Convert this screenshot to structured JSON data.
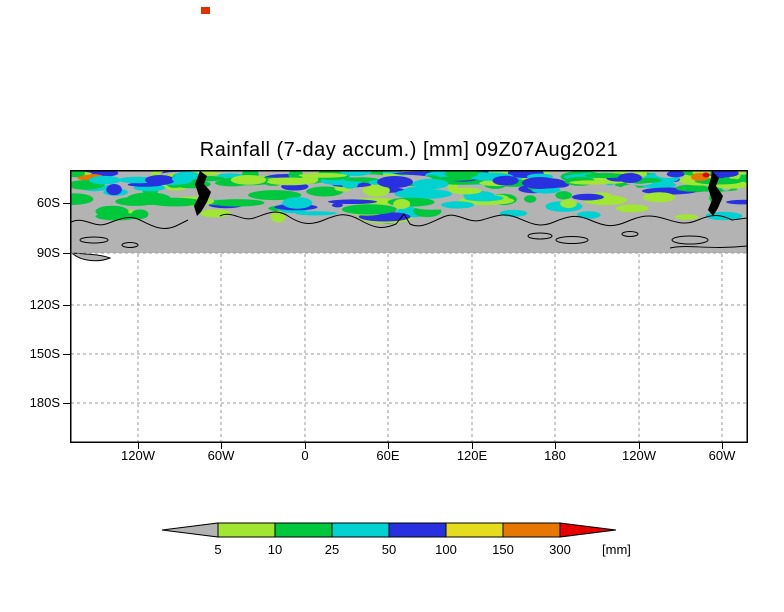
{
  "title": "Rainfall (7-day accum.) [mm] 09Z07Aug2021",
  "axes": {
    "x_ticks": [
      "120W",
      "60W",
      "0",
      "60E",
      "120E",
      "180",
      "120W",
      "60W"
    ],
    "y_ticks": [
      "60S",
      "90S",
      "120S",
      "150S",
      "180S"
    ]
  },
  "colorbar": {
    "levels": [
      "5",
      "10",
      "25",
      "50",
      "100",
      "150",
      "300"
    ],
    "unit_label": "[mm]",
    "colors": {
      "gray": "#b3b3b3",
      "chartreuse": "#a0e632",
      "green": "#00c83c",
      "cyan": "#00d2d2",
      "blue": "#2830e0",
      "yellow": "#e6dc1e",
      "orange": "#e67800",
      "red": "#e60000"
    }
  },
  "chart_data": {
    "type": "heatmap",
    "title": "Rainfall (7-day accum.) [mm] 09Z07Aug2021",
    "variable": "Rainfall, 7-day accumulation",
    "unit": "mm",
    "valid_time_label": "09Z07Aug2021",
    "x_tick_labels": [
      "120W",
      "60W",
      "0",
      "60E",
      "120E",
      "180",
      "120W",
      "60W"
    ],
    "y_tick_labels": [
      "60S",
      "90S",
      "120S",
      "150S",
      "180S"
    ],
    "color_levels": [
      5,
      10,
      25,
      50,
      100,
      150,
      300
    ],
    "level_colors": [
      "#b3b3b3",
      "#a0e632",
      "#00c83c",
      "#00d2d2",
      "#2830e0",
      "#e6dc1e",
      "#e67800",
      "#e60000"
    ],
    "legend_unit_label": "[mm]",
    "grid": "dashed",
    "shaded_region": "Rainfall shading fills the latitude band from the top of the panel down to the 90S gridline; mostly 5-50 mm (chartreuse/green/cyan) with embedded 50-100 mm blue streaks and isolated 150-300+ mm orange/red spots near 60W; area south of 90S is blank white",
    "overlay": "Antarctic coastline and peninsula landmass drawn in black over gray background"
  }
}
